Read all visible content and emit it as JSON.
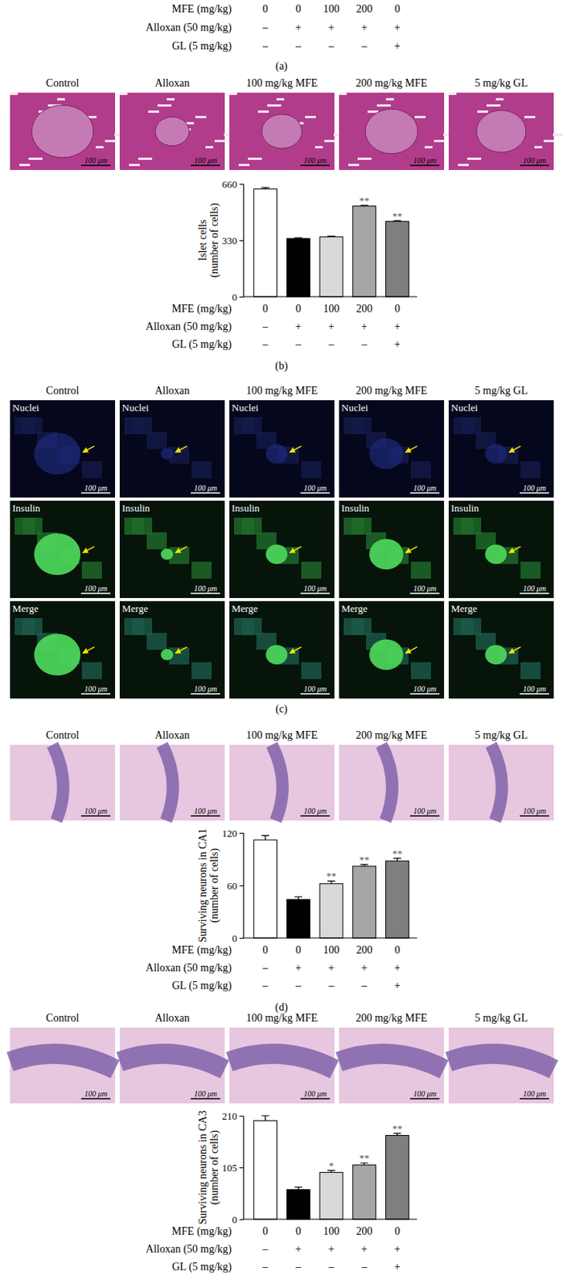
{
  "panel_a": {
    "label": "(a)",
    "conditions": [
      {
        "label": "MFE (mg/kg)",
        "values": [
          0,
          0,
          100,
          200,
          0
        ]
      },
      {
        "label": "Alloxan (50 mg/kg)",
        "values": [
          "–",
          "+",
          "+",
          "+",
          "+"
        ]
      },
      {
        "label": "GL (5 mg/kg)",
        "values": [
          "–",
          "–",
          "–",
          "–",
          "+"
        ]
      }
    ]
  },
  "image_rows": [
    {
      "titles": [
        "Control",
        "Alloxan",
        "100 mg/kg MFE",
        "200 mg/kg MFE",
        "5 mg/kg GL"
      ],
      "scale_bar": "100 μm"
    },
    {
      "titles": [
        "Control",
        "Alloxan",
        "100 mg/kg MFE",
        "200 mg/kg MFE",
        "5 mg/kg GL"
      ],
      "scale_bar": "100 μm"
    },
    {
      "titles": [
        "Control",
        "Alloxan",
        "100 mg/kg MFE",
        "200 mg/kg MFE",
        "5 mg/kg GL"
      ],
      "scale_bar": "100 μm"
    }
  ],
  "fluorescence": {
    "label": "(c)",
    "titles": [
      "Control",
      "Alloxan",
      "100 mg/kg MFE",
      "200 mg/kg MFE",
      "5 mg/kg GL"
    ],
    "channels": [
      "Nuclei",
      "Insulin",
      "Merge"
    ],
    "scale_bar": "100 μm"
  },
  "chart_data": [
    {
      "type": "bar",
      "panel_label": "(b)",
      "ylabel": [
        "Islet cells",
        "(number of cells)"
      ],
      "categories": [
        null,
        null,
        null,
        null,
        null
      ],
      "values": [
        630,
        340,
        350,
        530,
        440
      ],
      "errors": [
        8,
        4,
        4,
        4,
        5
      ],
      "significance": [
        null,
        null,
        null,
        "**",
        "**"
      ],
      "colors": [
        "#ffffff",
        "#000000",
        "#d9d9d9",
        "#a6a6a6",
        "#7f7f7f"
      ],
      "ylim": [
        0,
        660
      ],
      "yticks": [
        0,
        330,
        660
      ],
      "conditions": [
        {
          "label": "MFE (mg/kg)",
          "values": [
            0,
            0,
            100,
            200,
            0
          ]
        },
        {
          "label": "Alloxan (50 mg/kg)",
          "values": [
            "–",
            "+",
            "+",
            "+",
            "+"
          ]
        },
        {
          "label": "GL (5 mg/kg)",
          "values": [
            "–",
            "–",
            "–",
            "–",
            "+"
          ]
        }
      ]
    },
    {
      "type": "bar",
      "panel_label": "(d)",
      "ylabel": [
        "Surviving neurons in CA1",
        "(number of cells)"
      ],
      "categories": [
        null,
        null,
        null,
        null,
        null
      ],
      "values": [
        112,
        44,
        62,
        82,
        88
      ],
      "errors": [
        5,
        3,
        3,
        2,
        3
      ],
      "significance": [
        null,
        null,
        "**",
        "**",
        "**"
      ],
      "colors": [
        "#ffffff",
        "#000000",
        "#d9d9d9",
        "#a6a6a6",
        "#7f7f7f"
      ],
      "ylim": [
        0,
        120
      ],
      "yticks": [
        0,
        60,
        120
      ],
      "conditions": [
        {
          "label": "MFE (mg/kg)",
          "values": [
            0,
            0,
            100,
            200,
            0
          ]
        },
        {
          "label": "Alloxan (50 mg/kg)",
          "values": [
            "–",
            "+",
            "+",
            "+",
            "+"
          ]
        },
        {
          "label": "GL (5 mg/kg)",
          "values": [
            "–",
            "–",
            "–",
            "–",
            "+"
          ]
        }
      ]
    },
    {
      "type": "bar",
      "ylabel": [
        "Surviving neurons in CA3",
        "(number of cells)"
      ],
      "categories": [
        null,
        null,
        null,
        null,
        null
      ],
      "values": [
        200,
        60,
        95,
        110,
        170
      ],
      "errors": [
        10,
        5,
        4,
        4,
        4
      ],
      "significance": [
        null,
        null,
        "*",
        "**",
        "**"
      ],
      "colors": [
        "#ffffff",
        "#000000",
        "#d9d9d9",
        "#a6a6a6",
        "#7f7f7f"
      ],
      "ylim": [
        0,
        210
      ],
      "yticks": [
        0,
        105,
        210
      ],
      "conditions": [
        {
          "label": "MFE (mg/kg)",
          "values": [
            0,
            0,
            100,
            200,
            0
          ]
        },
        {
          "label": "Alloxan (50 mg/kg)",
          "values": [
            "–",
            "+",
            "+",
            "+",
            "+"
          ]
        },
        {
          "label": "GL (5 mg/kg)",
          "values": [
            "–",
            "–",
            "–",
            "–",
            "+"
          ]
        }
      ]
    }
  ]
}
